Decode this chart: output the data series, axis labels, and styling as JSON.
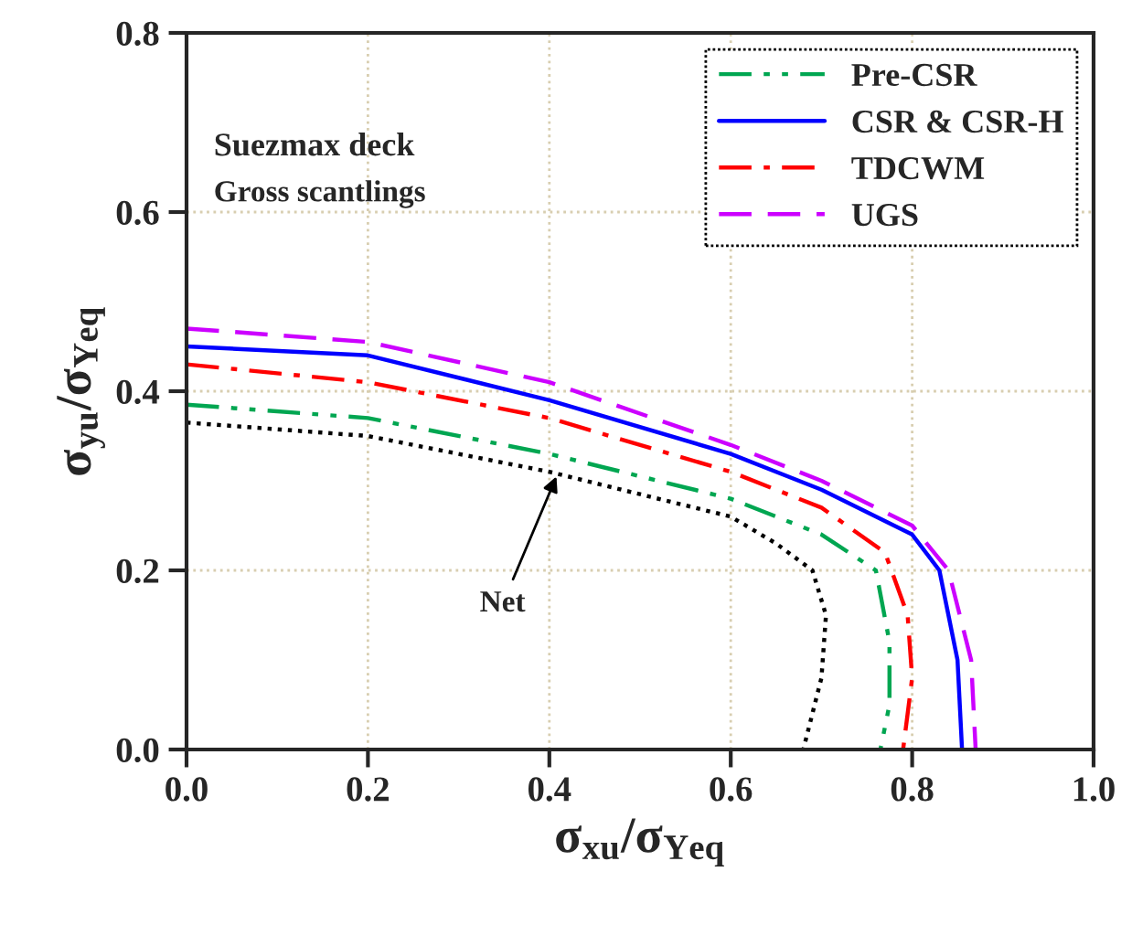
{
  "chart_data": {
    "type": "line",
    "xlabel": "σ$_{xu}$/σ$_{Yeq}$",
    "ylabel": "σ$_{yu}$/σ$_{Yeq}$",
    "xlim": [
      0,
      1.0
    ],
    "ylim": [
      0,
      0.8
    ],
    "xticks": [
      {
        "value": 0,
        "label": "0.0"
      },
      {
        "value": 0.2,
        "label": "0.2"
      },
      {
        "value": 0.4,
        "label": "0.4"
      },
      {
        "value": 0.6,
        "label": "0.6"
      },
      {
        "value": 0.8,
        "label": "0.8"
      },
      {
        "value": 1.0,
        "label": "1.0"
      }
    ],
    "yticks": [
      {
        "value": 0,
        "label": "0.0"
      },
      {
        "value": 0.2,
        "label": "0.2"
      },
      {
        "value": 0.4,
        "label": "0.4"
      },
      {
        "value": 0.6,
        "label": "0.6"
      },
      {
        "value": 0.8,
        "label": "0.8"
      }
    ],
    "grid": true,
    "legend": "top right",
    "marker": "none",
    "series": [
      {
        "name": "Pre-CSR",
        "color": "#00a651",
        "line_style": "dashdotdot",
        "x": [
          0,
          0.2,
          0.4,
          0.6,
          0.7,
          0.76,
          0.775,
          0.775,
          0.765
        ],
        "values": [
          0.385,
          0.37,
          0.33,
          0.28,
          0.24,
          0.2,
          0.12,
          0.05,
          0
        ]
      },
      {
        "name": "CSR & CSR-H",
        "color": "#0000ff",
        "line_style": "solid",
        "x": [
          0,
          0.2,
          0.4,
          0.6,
          0.7,
          0.8,
          0.83,
          0.85,
          0.855
        ],
        "values": [
          0.45,
          0.44,
          0.39,
          0.33,
          0.29,
          0.24,
          0.2,
          0.1,
          0
        ]
      },
      {
        "name": "TDCWM",
        "color": "#ff0000",
        "line_style": "dashdot",
        "x": [
          0,
          0.2,
          0.4,
          0.6,
          0.7,
          0.77,
          0.795,
          0.8,
          0.79
        ],
        "values": [
          0.43,
          0.41,
          0.37,
          0.31,
          0.27,
          0.22,
          0.15,
          0.08,
          0
        ]
      },
      {
        "name": "UGS",
        "color": "#cc00ff",
        "line_style": "dashed",
        "x": [
          0,
          0.2,
          0.4,
          0.6,
          0.7,
          0.8,
          0.84,
          0.865,
          0.87
        ],
        "values": [
          0.47,
          0.455,
          0.41,
          0.34,
          0.3,
          0.25,
          0.2,
          0.1,
          0
        ]
      },
      {
        "color": "#000000",
        "line_style": "dotted",
        "x": [
          0,
          0.2,
          0.4,
          0.6,
          0.65,
          0.69,
          0.705,
          0.7,
          0.68
        ],
        "values": [
          0.365,
          0.35,
          0.31,
          0.26,
          0.23,
          0.2,
          0.15,
          0.08,
          0
        ]
      }
    ],
    "annotations": [
      "Suezmax deck",
      "Gross scantlings",
      {
        "text": "Net",
        "x": 0.41,
        "y": 0.31
      }
    ]
  }
}
